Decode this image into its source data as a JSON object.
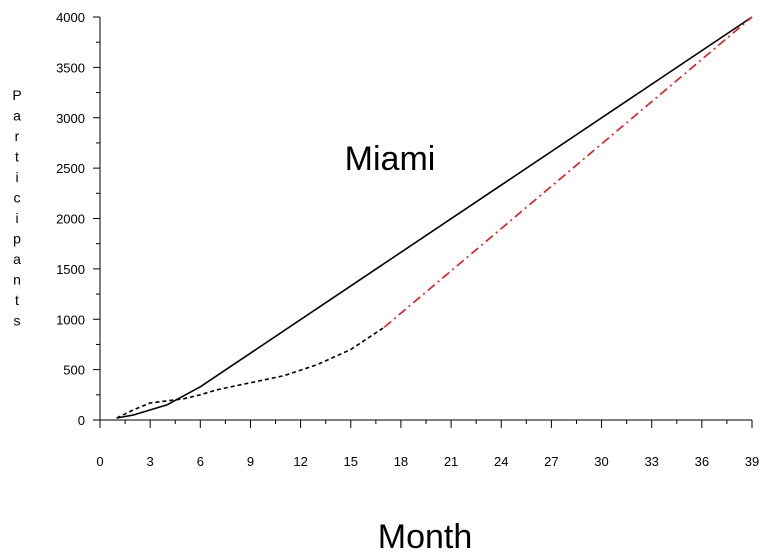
{
  "chart_data": {
    "type": "line",
    "title": "Miami",
    "xlabel": "Month",
    "ylabel": "Participants",
    "xlim": [
      0,
      39
    ],
    "ylim": [
      0,
      4000
    ],
    "xticks": [
      0,
      3,
      6,
      9,
      12,
      15,
      18,
      21,
      24,
      27,
      30,
      33,
      36,
      39
    ],
    "yticks": [
      0,
      500,
      1000,
      1500,
      2000,
      2500,
      3000,
      3500,
      4000
    ],
    "grid": false,
    "series": [
      {
        "style": "solid",
        "color": "#000000",
        "x": [
          1,
          2,
          4,
          6,
          39
        ],
        "y": [
          20,
          50,
          150,
          330,
          4000
        ]
      },
      {
        "style": "dashed",
        "color": "#000000",
        "x": [
          1,
          2,
          3,
          4,
          5,
          6,
          7,
          9,
          11,
          13,
          15,
          17
        ],
        "y": [
          20,
          100,
          170,
          190,
          210,
          250,
          300,
          370,
          440,
          550,
          700,
          920
        ]
      },
      {
        "style": "dashdot",
        "color": "#e41a1c",
        "x": [
          17,
          39
        ],
        "y": [
          920,
          4000
        ]
      }
    ]
  }
}
